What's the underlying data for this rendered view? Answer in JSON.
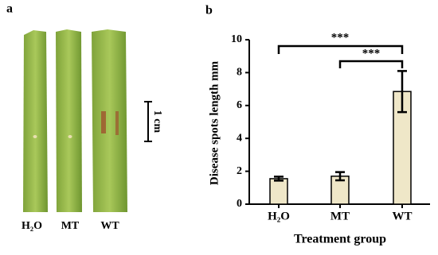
{
  "panel_a": {
    "label": "a",
    "leaf_labels": [
      "H₂O",
      "MT",
      "WT"
    ],
    "scale_label": "1 cm"
  },
  "chart_data": {
    "type": "bar",
    "panel_label": "b",
    "categories": [
      "H₂O",
      "MT",
      "WT"
    ],
    "values": [
      1.55,
      1.7,
      6.85
    ],
    "errors": [
      0.12,
      0.25,
      1.25
    ],
    "color": "#efe7c8",
    "ylim": [
      0,
      10
    ],
    "yticks": [
      0,
      2,
      4,
      6,
      8,
      10
    ],
    "y_label": "Disease spots length mm",
    "x_label": "Treatment group",
    "annotations": [
      "***",
      "***"
    ],
    "grid": false
  }
}
